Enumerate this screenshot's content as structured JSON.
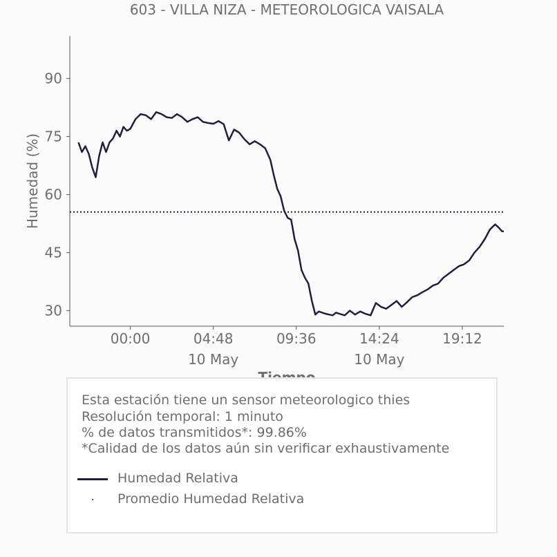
{
  "chart_data": {
    "type": "line",
    "title": "603 - VILLA NIZA - METEOROLOGICA VAISALA",
    "xlabel": "Tiempo",
    "ylabel": "Humedad (%)",
    "x_unit": "hours from 00:00 10 May",
    "xlim": [
      -3.5,
      21.6
    ],
    "ylim": [
      26,
      101
    ],
    "y_ticks": [
      30,
      45,
      60,
      75,
      90
    ],
    "x_ticks": [
      {
        "x": 0.0,
        "label": "00:00",
        "sublabel": ""
      },
      {
        "x": 4.8,
        "label": "04:48",
        "sublabel": "10 May"
      },
      {
        "x": 9.6,
        "label": "09:36",
        "sublabel": ""
      },
      {
        "x": 14.4,
        "label": "14:24",
        "sublabel": "10 May"
      },
      {
        "x": 19.2,
        "label": "19:12",
        "sublabel": ""
      }
    ],
    "grid": false,
    "series": [
      {
        "name": "Humedad Relativa",
        "style": "solid",
        "color": "#1f1f3d",
        "x": [
          -3.0,
          -2.8,
          -2.6,
          -2.4,
          -2.2,
          -2.0,
          -1.8,
          -1.6,
          -1.4,
          -1.2,
          -1.0,
          -0.8,
          -0.6,
          -0.4,
          -0.2,
          0.0,
          0.3,
          0.6,
          0.9,
          1.2,
          1.5,
          1.8,
          2.1,
          2.4,
          2.7,
          3.0,
          3.3,
          3.6,
          3.9,
          4.2,
          4.5,
          4.8,
          5.1,
          5.4,
          5.7,
          6.0,
          6.3,
          6.6,
          6.9,
          7.2,
          7.5,
          7.8,
          8.1,
          8.3,
          8.5,
          8.7,
          8.9,
          9.1,
          9.3,
          9.5,
          9.7,
          9.9,
          10.1,
          10.3,
          10.5,
          10.7,
          10.9,
          11.1,
          11.3,
          11.5,
          11.7,
          11.9,
          12.1,
          12.4,
          12.7,
          13.0,
          13.3,
          13.6,
          13.9,
          14.2,
          14.5,
          14.8,
          15.1,
          15.4,
          15.7,
          16.0,
          16.3,
          16.6,
          16.9,
          17.2,
          17.5,
          17.8,
          18.1,
          18.4,
          18.7,
          19.0,
          19.3,
          19.6,
          19.9,
          20.2,
          20.5,
          20.8,
          21.1,
          21.3,
          21.5,
          21.6
        ],
        "y": [
          73.5,
          71.0,
          72.5,
          70.5,
          67.0,
          64.5,
          70.0,
          73.5,
          71.0,
          73.5,
          74.5,
          76.5,
          75.0,
          77.5,
          76.5,
          77.0,
          79.5,
          80.8,
          80.5,
          79.5,
          81.3,
          80.8,
          80.0,
          79.8,
          80.8,
          80.0,
          78.8,
          79.5,
          80.0,
          78.8,
          78.5,
          78.3,
          79.0,
          78.2,
          74.0,
          76.8,
          76.0,
          74.3,
          73.0,
          73.8,
          73.0,
          72.0,
          69.0,
          65.0,
          61.5,
          59.5,
          55.8,
          54.0,
          53.5,
          48.5,
          45.5,
          40.5,
          38.5,
          37.0,
          32.5,
          29.0,
          29.8,
          29.5,
          29.2,
          29.0,
          28.8,
          29.5,
          29.2,
          28.8,
          30.0,
          29.0,
          29.8,
          29.2,
          28.8,
          32.0,
          31.0,
          30.5,
          31.5,
          32.5,
          31.0,
          32.2,
          33.5,
          34.0,
          34.8,
          35.5,
          36.5,
          37.0,
          38.5,
          39.5,
          40.5,
          41.5,
          42.0,
          43.0,
          45.0,
          46.5,
          48.5,
          51.0,
          52.3,
          51.5,
          50.5,
          50.5
        ]
      },
      {
        "name": "Promedio Humedad Relativa",
        "style": "dotted",
        "color": "#1f1f3d",
        "x": [
          -3.5,
          21.6
        ],
        "y": [
          55.5,
          55.5
        ]
      }
    ],
    "legend_placement": "below"
  },
  "info": {
    "lines": [
      "Esta estación tiene un sensor meteorologico thies",
      "Resolución temporal: 1 minuto",
      "% de datos transmitidos*: 99.86%",
      "*Calidad de los datos aún sin verificar exhaustivamente"
    ]
  },
  "colors": {
    "series": "#1f1f3d",
    "text": "#6e6e6e",
    "axis": "#555555",
    "background": "#fbfbfb"
  }
}
